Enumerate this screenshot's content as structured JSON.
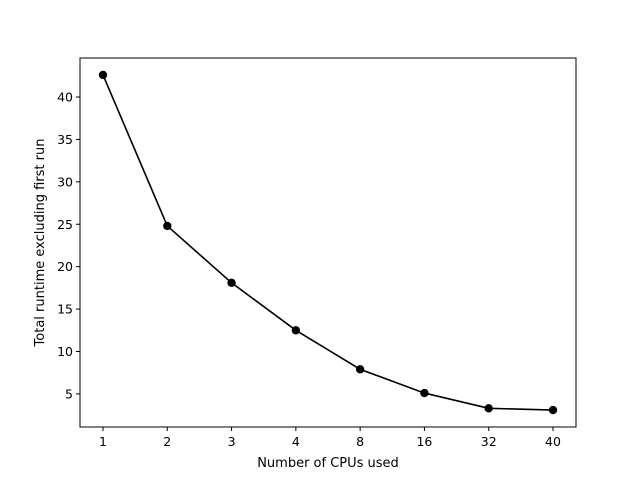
{
  "chart_data": {
    "type": "line",
    "title": "",
    "xlabel": "Number of CPUs used",
    "ylabel": "Total runtime excluding first run",
    "x_scale": "categorical",
    "categories": [
      "1",
      "2",
      "3",
      "4",
      "8",
      "16",
      "32",
      "40"
    ],
    "series": [
      {
        "values": [
          42.6,
          24.8,
          18.1,
          12.5,
          7.9,
          5.1,
          3.3,
          3.1
        ],
        "color": "#000000",
        "marker": "circle"
      }
    ],
    "yticks": [
      5,
      10,
      15,
      20,
      25,
      30,
      35,
      40
    ],
    "ylim": [
      1.1,
      44.6
    ],
    "grid": false,
    "legend": "none"
  }
}
